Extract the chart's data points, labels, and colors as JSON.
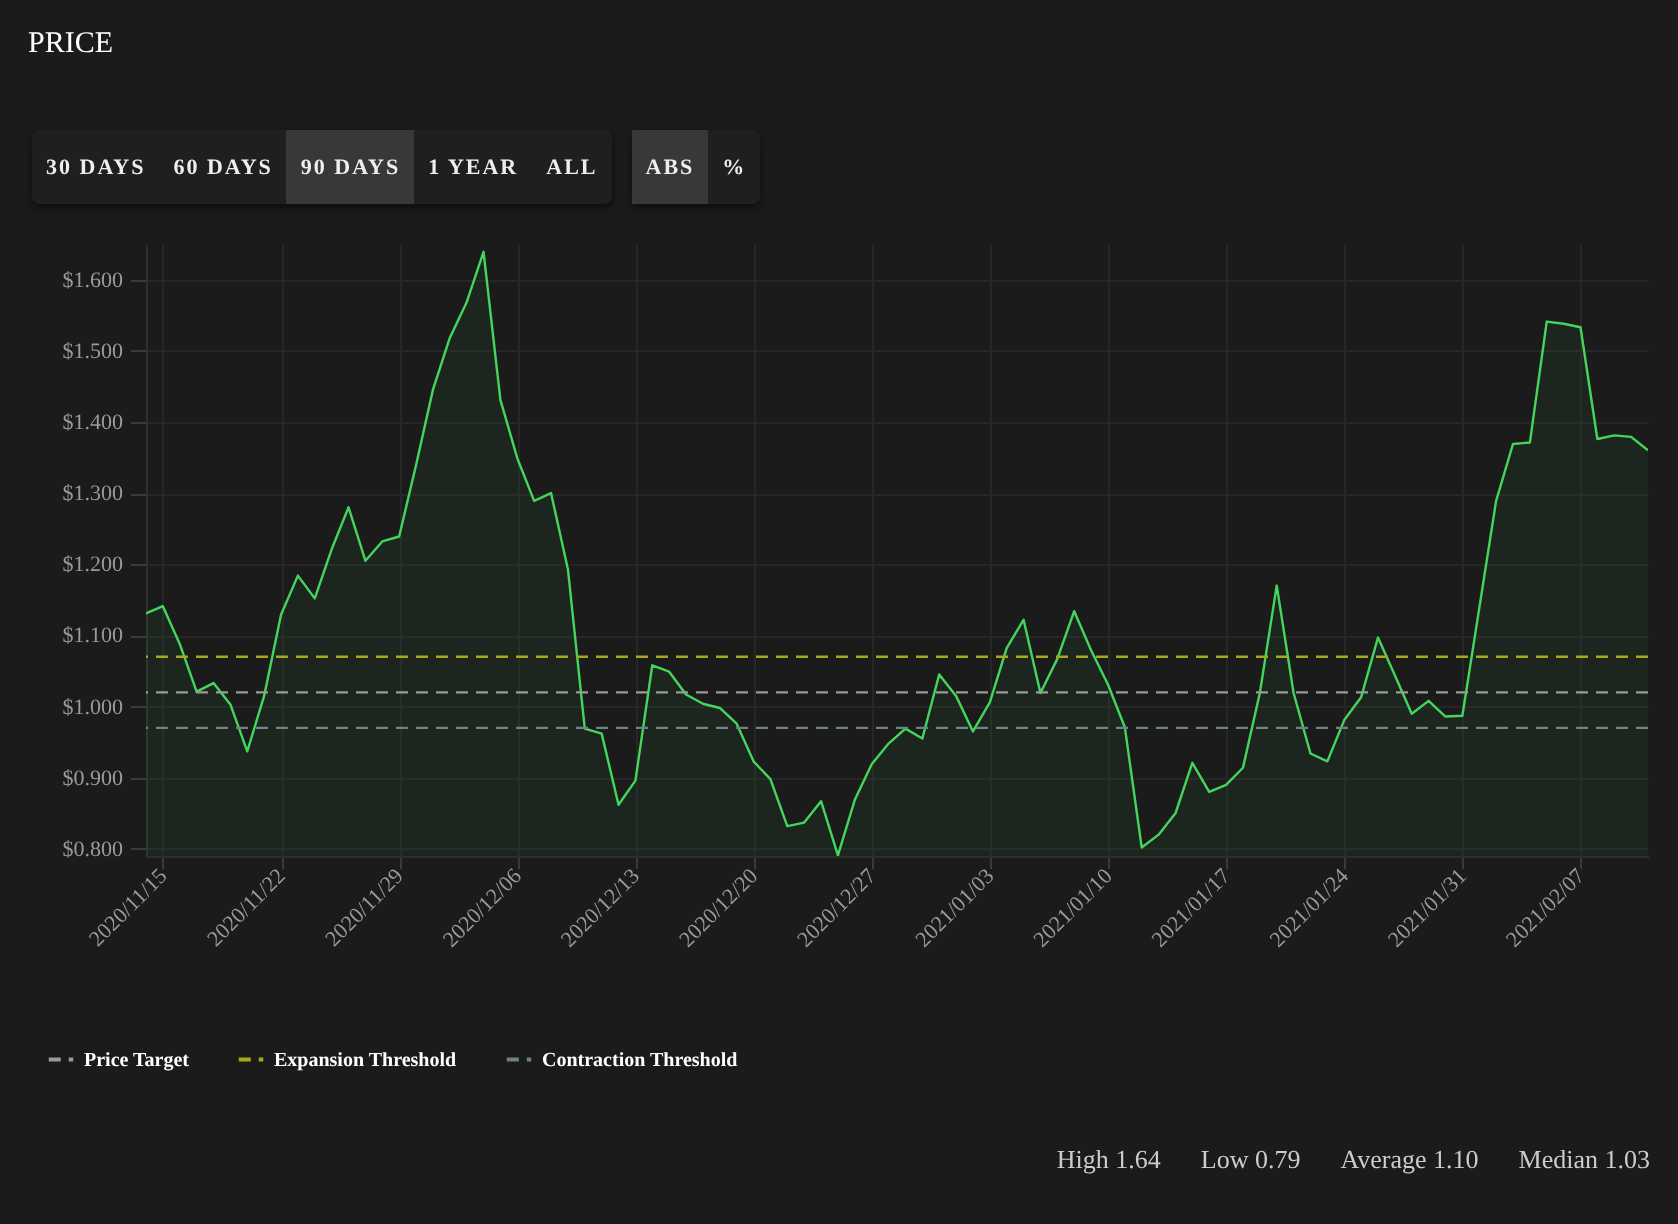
{
  "chart_data": {
    "type": "area",
    "title": "PRICE",
    "x": [
      "2020-11-14",
      "2020-11-15",
      "2020-11-16",
      "2020-11-17",
      "2020-11-18",
      "2020-11-19",
      "2020-11-20",
      "2020-11-21",
      "2020-11-22",
      "2020-11-23",
      "2020-11-24",
      "2020-11-25",
      "2020-11-26",
      "2020-11-27",
      "2020-11-28",
      "2020-11-29",
      "2020-11-30",
      "2020-12-01",
      "2020-12-02",
      "2020-12-03",
      "2020-12-04",
      "2020-12-05",
      "2020-12-06",
      "2020-12-07",
      "2020-12-08",
      "2020-12-09",
      "2020-12-10",
      "2020-12-11",
      "2020-12-12",
      "2020-12-13",
      "2020-12-14",
      "2020-12-15",
      "2020-12-16",
      "2020-12-17",
      "2020-12-18",
      "2020-12-19",
      "2020-12-20",
      "2020-12-21",
      "2020-12-22",
      "2020-12-23",
      "2020-12-24",
      "2020-12-25",
      "2020-12-26",
      "2020-12-27",
      "2020-12-28",
      "2020-12-29",
      "2020-12-30",
      "2020-12-31",
      "2021-01-01",
      "2021-01-02",
      "2021-01-03",
      "2021-01-04",
      "2021-01-05",
      "2021-01-06",
      "2021-01-07",
      "2021-01-08",
      "2021-01-09",
      "2021-01-10",
      "2021-01-11",
      "2021-01-12",
      "2021-01-13",
      "2021-01-14",
      "2021-01-15",
      "2021-01-16",
      "2021-01-17",
      "2021-01-18",
      "2021-01-19",
      "2021-01-20",
      "2021-01-21",
      "2021-01-22",
      "2021-01-23",
      "2021-01-24",
      "2021-01-25",
      "2021-01-26",
      "2021-01-27",
      "2021-01-28",
      "2021-01-29",
      "2021-01-30",
      "2021-01-31",
      "2021-02-01",
      "2021-02-02",
      "2021-02-03",
      "2021-02-04",
      "2021-02-05",
      "2021-02-06",
      "2021-02-07",
      "2021-02-08",
      "2021-02-09",
      "2021-02-10",
      "2021-02-11"
    ],
    "series": [
      {
        "color": "#44d65c",
        "values": [
          1.131,
          1.141,
          1.088,
          1.021,
          1.033,
          1.003,
          0.937,
          1.015,
          1.129,
          1.184,
          1.152,
          1.221,
          1.28,
          1.205,
          1.232,
          1.239,
          1.339,
          1.445,
          1.518,
          1.568,
          1.639,
          1.431,
          1.349,
          1.289,
          1.3,
          1.193,
          0.969,
          0.962,
          0.862,
          0.896,
          1.058,
          1.049,
          1.017,
          1.004,
          0.998,
          0.976,
          0.923,
          0.898,
          0.832,
          0.837,
          0.867,
          0.791,
          0.869,
          0.919,
          0.948,
          0.969,
          0.955,
          1.045,
          1.015,
          0.965,
          1.006,
          1.082,
          1.122,
          1.019,
          1.067,
          1.134,
          1.079,
          1.031,
          0.971,
          0.802,
          0.82,
          0.85,
          0.921,
          0.88,
          0.89,
          0.914,
          1.019,
          1.17,
          1.019,
          0.934,
          0.923,
          0.981,
          1.013,
          1.097,
          1.044,
          0.99,
          1.008,
          0.986,
          0.987,
          1.138,
          1.289,
          1.369,
          1.371,
          1.541,
          1.538,
          1.533,
          1.376,
          1.381,
          1.379,
          1.36
        ]
      }
    ],
    "xlim": [
      "2020-11-14",
      "2021-02-11"
    ],
    "xticks": [
      {
        "value": "2020-11-15",
        "label": "2020/11/15"
      },
      {
        "value": "2020-11-22",
        "label": "2020/11/22"
      },
      {
        "value": "2020-11-29",
        "label": "2020/11/29"
      },
      {
        "value": "2020-12-06",
        "label": "2020/12/06"
      },
      {
        "value": "2020-12-13",
        "label": "2020/12/13"
      },
      {
        "value": "2020-12-20",
        "label": "2020/12/20"
      },
      {
        "value": "2020-12-27",
        "label": "2020/12/27"
      },
      {
        "value": "2021-01-03",
        "label": "2021/01/03"
      },
      {
        "value": "2021-01-10",
        "label": "2021/01/10"
      },
      {
        "value": "2021-01-17",
        "label": "2021/01/17"
      },
      {
        "value": "2021-01-24",
        "label": "2021/01/24"
      },
      {
        "value": "2021-01-31",
        "label": "2021/01/31"
      },
      {
        "value": "2021-02-07",
        "label": "2021/02/07"
      }
    ],
    "ylim": [
      0.79,
      1.65
    ],
    "yticks": [
      {
        "value": 0.8,
        "label": "$0.800"
      },
      {
        "value": 0.9,
        "label": "$0.900"
      },
      {
        "value": 1.0,
        "label": "$1.000"
      },
      {
        "value": 1.1,
        "label": "$1.100"
      },
      {
        "value": 1.2,
        "label": "$1.200"
      },
      {
        "value": 1.3,
        "label": "$1.300"
      },
      {
        "value": 1.4,
        "label": "$1.400"
      },
      {
        "value": 1.5,
        "label": "$1.500"
      },
      {
        "value": 1.6,
        "label": "$1.600"
      }
    ],
    "ref_lines": [
      {
        "axis": "y",
        "value": 1.02,
        "label": "Price Target",
        "color": "#9a9a9a",
        "line_style": "dashed"
      },
      {
        "axis": "y",
        "value": 1.07,
        "label": "Expansion Threshold",
        "color": "#a8a81c",
        "line_style": "dashed"
      },
      {
        "axis": "y",
        "value": 0.97,
        "label": "Contraction Threshold",
        "color": "#6e8288",
        "line_style": "dashed"
      }
    ],
    "grid": true,
    "legend": "bottom left",
    "annotations": [
      "30 DAYS",
      "60 DAYS",
      "90 DAYS",
      "1 YEAR",
      "ALL",
      "ABS",
      "%",
      "High 1.64",
      "Low 0.79",
      "Average 1.10",
      "Median 1.03"
    ]
  }
}
